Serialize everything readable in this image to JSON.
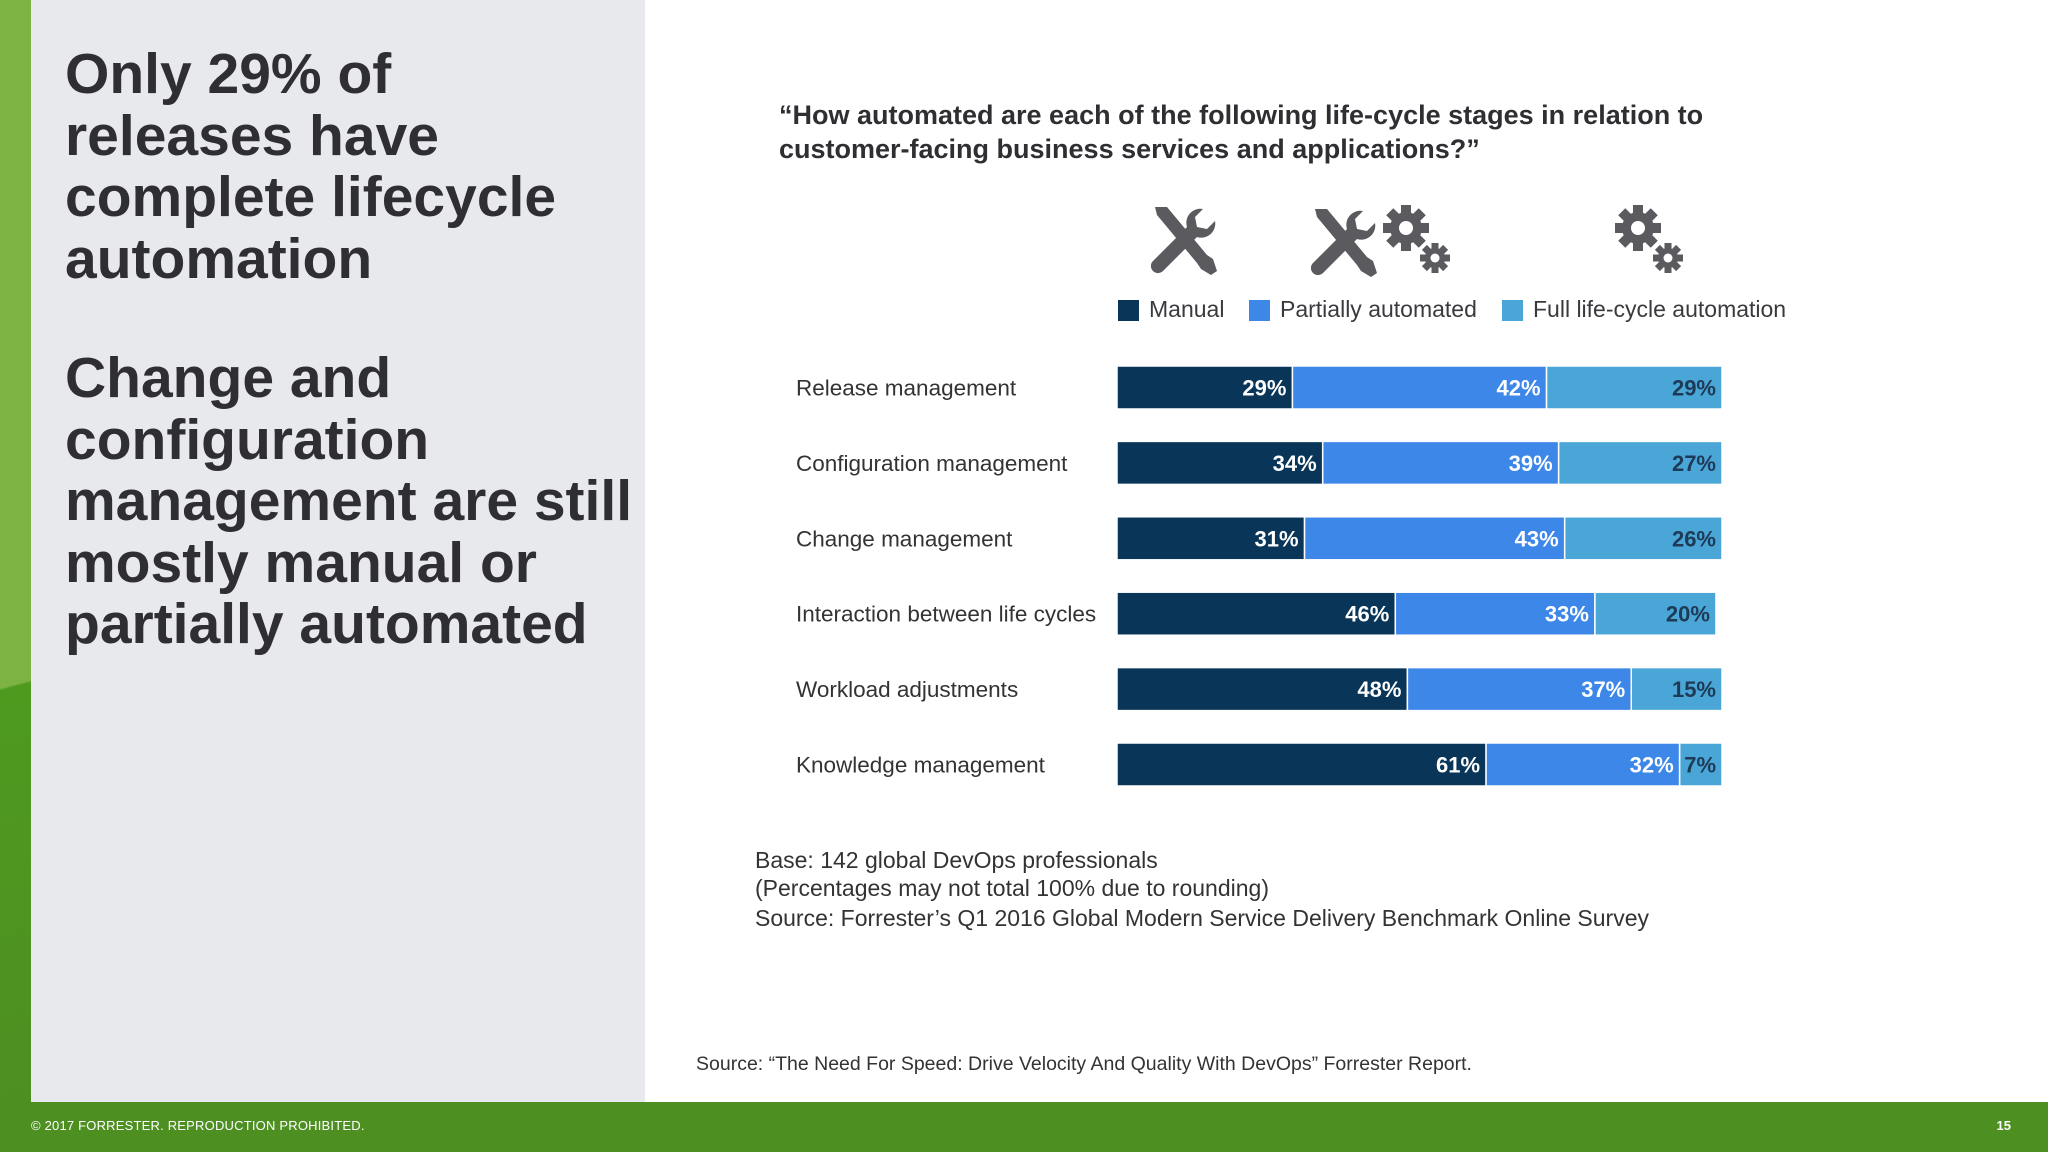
{
  "headline_1": "Only 29% of releases have complete lifecycle automation",
  "headline_2": "Change and configuration management are still mostly manual or partially automated",
  "footer": {
    "copyright": "© 2017 FORRESTER. REPRODUCTION PROHIBITED.",
    "page_number": "15"
  },
  "report_source": "Source: “The Need For Speed: Drive Velocity And Quality With DevOps” Forrester Report.",
  "icons": [
    "wrench-screwdriver-icon",
    "wrench-screwdriver-gears-icon",
    "gears-icon"
  ],
  "colors": {
    "accent_green": "#7cb342",
    "footer_green": "#4e8f22",
    "panel_gray": "#e8e9ec",
    "icon_gray": "#5a5a5f",
    "manual": "#083558",
    "partial": "#3d87e8",
    "full": "#4ba6d8"
  },
  "chart_data": {
    "type": "bar",
    "orientation": "horizontal",
    "stacked": true,
    "title": "“How automated are each of the following life-cycle stages in relation to customer-facing business services and applications?”",
    "categories": [
      "Release management",
      "Configuration management",
      "Change management",
      "Interaction between life cycles",
      "Workload adjustments",
      "Knowledge management"
    ],
    "series": [
      {
        "name": "Manual",
        "color": "#083558",
        "values": [
          29,
          34,
          31,
          46,
          48,
          61
        ]
      },
      {
        "name": "Partially automated",
        "color": "#3d87e8",
        "values": [
          42,
          39,
          43,
          33,
          37,
          32
        ]
      },
      {
        "name": "Full life-cycle automation",
        "color": "#4ba6d8",
        "values": [
          29,
          27,
          26,
          20,
          15,
          7
        ]
      }
    ],
    "value_suffix": "%",
    "legend_position": "top",
    "grid": false,
    "notes": [
      "Base: 142 global DevOps professionals",
      "(Percentages may not total 100% due to rounding)",
      "Source: Forrester’s Q1 2016 Global Modern Service Delivery Benchmark Online Survey"
    ]
  }
}
